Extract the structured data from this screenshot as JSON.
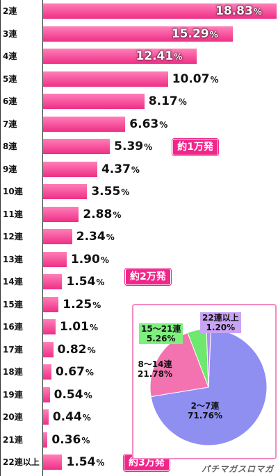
{
  "chart_data": [
    {
      "type": "bar",
      "orientation": "horizontal",
      "categories": [
        "2連",
        "3連",
        "4連",
        "5連",
        "6連",
        "7連",
        "8連",
        "9連",
        "10連",
        "11連",
        "12連",
        "13連",
        "14連",
        "15連",
        "16連",
        "17連",
        "18連",
        "19連",
        "20連",
        "21連",
        "22連以上"
      ],
      "values": [
        18.83,
        15.29,
        12.41,
        10.07,
        8.17,
        6.63,
        5.39,
        4.37,
        3.55,
        2.88,
        2.34,
        1.9,
        1.54,
        1.25,
        1.01,
        0.82,
        0.67,
        0.54,
        0.44,
        0.36,
        1.54
      ],
      "value_labels": [
        "18.83",
        "15.29",
        "12.41",
        "10.07",
        "8.17",
        "6.63",
        "5.39",
        "4.37",
        "3.55",
        "2.88",
        "2.34",
        "1.90",
        "1.54",
        "1.25",
        "1.01",
        "0.82",
        "0.67",
        "0.54",
        "0.44",
        "0.36",
        "1.54"
      ],
      "unit": "%",
      "bar_color": "#ee2f86",
      "annotations": [
        {
          "category": "8連",
          "text": "約1万発"
        },
        {
          "category": "14連",
          "text": "約2万発"
        },
        {
          "category": "22連以上",
          "text": "約3万発"
        }
      ]
    },
    {
      "type": "pie",
      "slices": [
        {
          "name": "2〜7連",
          "value": 71.76,
          "label": "71.76%",
          "color": "#8f8ff2"
        },
        {
          "name": "8〜14連",
          "value": 21.78,
          "label": "21.78%",
          "color": "#f373b0"
        },
        {
          "name": "15〜21連",
          "value": 5.26,
          "label": "5.26%",
          "color": "#6ee86e"
        },
        {
          "name": "22連以上",
          "value": 1.2,
          "label": "1.20%",
          "color": "#b98af0"
        }
      ]
    }
  ],
  "watermark": "パチマガスロマガ"
}
